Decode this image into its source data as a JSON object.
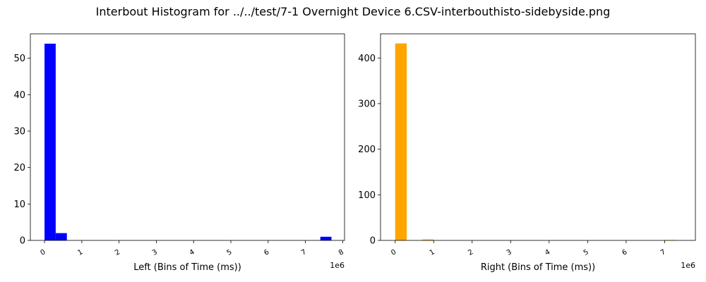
{
  "figure": {
    "title": "Interbout Histogram for ../../test/7-1 Overnight Device 6.CSV-interbouthisto-sidebyside.png"
  },
  "chart_data": [
    {
      "type": "bar",
      "subplot": "left",
      "color": "#0000ff",
      "xlabel": "Left (Bins of Time (ms))",
      "ylabel": "",
      "x_offset_label": "1e6",
      "xlim": [
        -0.38,
        8.05
      ],
      "ylim": [
        0,
        56.7
      ],
      "xticks": [
        0,
        1,
        2,
        3,
        4,
        5,
        6,
        7,
        8
      ],
      "yticks": [
        0,
        10,
        20,
        30,
        40,
        50
      ],
      "bins": [
        {
          "x0": 0.0,
          "x1": 0.3,
          "count": 54
        },
        {
          "x0": 0.3,
          "x1": 0.6,
          "count": 2
        },
        {
          "x0": 7.4,
          "x1": 7.7,
          "count": 1
        }
      ]
    },
    {
      "type": "bar",
      "subplot": "right",
      "color": "#ffa500",
      "xlabel": "Right (Bins of Time (ms))",
      "ylabel": "",
      "x_offset_label": "1e6",
      "xlim": [
        -0.38,
        7.8
      ],
      "ylim": [
        0,
        453
      ],
      "xticks": [
        0,
        1,
        2,
        3,
        4,
        5,
        6,
        7
      ],
      "yticks": [
        0,
        100,
        200,
        300,
        400
      ],
      "bins": [
        {
          "x0": 0.0,
          "x1": 0.3,
          "count": 432
        },
        {
          "x0": 0.7,
          "x1": 1.0,
          "count": 2
        },
        {
          "x0": 7.0,
          "x1": 7.3,
          "count": 1
        }
      ]
    }
  ]
}
